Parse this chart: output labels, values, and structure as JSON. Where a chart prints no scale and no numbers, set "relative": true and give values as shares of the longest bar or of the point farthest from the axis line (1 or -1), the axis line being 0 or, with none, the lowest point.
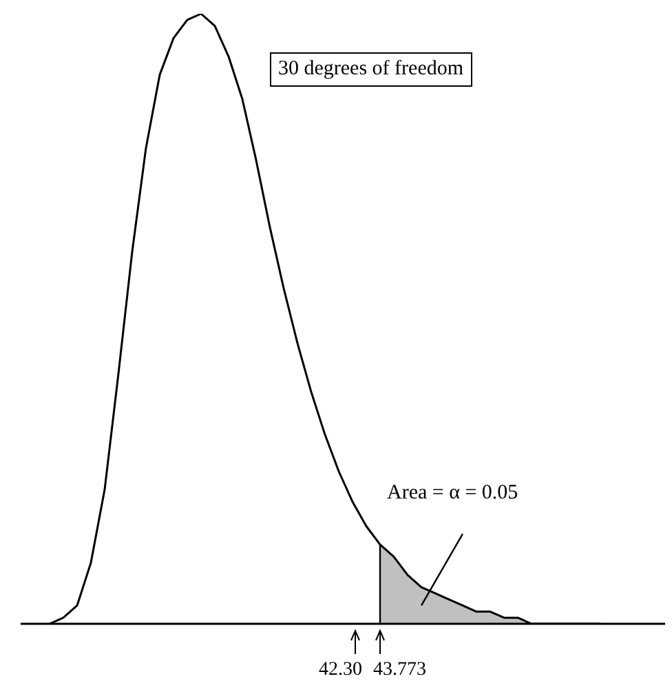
{
  "chart_data": {
    "type": "line",
    "title": "30 degrees of freedom",
    "relative": true,
    "categories": [
      null,
      null,
      null,
      null,
      null,
      null,
      null,
      null,
      null,
      null,
      null,
      null,
      null,
      null,
      null,
      null,
      null,
      null,
      null,
      null,
      null,
      null,
      null,
      null,
      null,
      null,
      null,
      null,
      null,
      null,
      null,
      null,
      null,
      null,
      null,
      null,
      null,
      null,
      null,
      null,
      null
    ],
    "grid": false,
    "marker": "none",
    "line_style": "solid",
    "annotations": [
      "Area = α = 0.05",
      "42.30",
      "43.773"
    ],
    "series": [
      {
        "color": "#000000",
        "values": [
          0,
          0.01,
          0.03,
          0.1,
          0.22,
          0.41,
          0.61,
          0.78,
          0.9,
          0.96,
          0.99,
          1,
          0.98,
          0.93,
          0.86,
          0.76,
          0.65,
          0.55,
          0.46,
          0.38,
          0.31,
          0.25,
          0.2,
          0.16,
          0.13,
          0.11,
          0.08,
          0.06,
          0.05,
          0.04,
          0.03,
          0.02,
          0.02,
          0.01,
          0.01,
          0,
          0,
          0,
          0,
          0,
          0
        ]
      },
      {
        "type": "area",
        "color": "#c0c0c0",
        "values": [
          null,
          null,
          null,
          null,
          null,
          null,
          null,
          null,
          null,
          null,
          null,
          null,
          null,
          null,
          null,
          null,
          null,
          null,
          null,
          null,
          null,
          null,
          null,
          null,
          0.13,
          0.11,
          0.08,
          0.06,
          0.05,
          0.04,
          0.03,
          0.02,
          0.02,
          0.01,
          0.01,
          0,
          0,
          0,
          0,
          0,
          0
        ]
      }
    ]
  }
}
